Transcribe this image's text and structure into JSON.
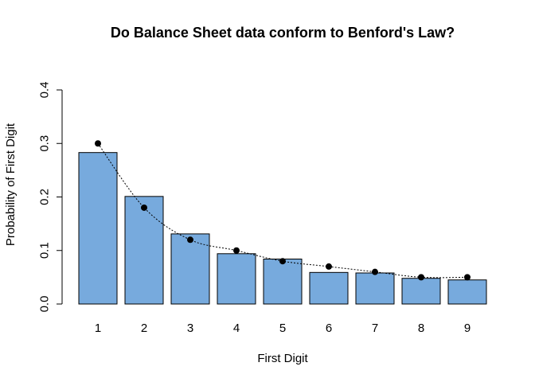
{
  "chart_data": {
    "type": "bar",
    "title": "Do Balance Sheet data conform to Benford's Law?",
    "xlabel": "First Digit",
    "ylabel": "Probability of First Digit",
    "categories": [
      "1",
      "2",
      "3",
      "4",
      "5",
      "6",
      "7",
      "8",
      "9"
    ],
    "values": [
      0.283,
      0.201,
      0.131,
      0.094,
      0.084,
      0.059,
      0.058,
      0.048,
      0.045
    ],
    "overlay_points": [
      0.3,
      0.18,
      0.12,
      0.1,
      0.08,
      0.07,
      0.06,
      0.05,
      0.05
    ],
    "ylim": [
      0,
      0.4
    ],
    "yticks": [
      "0.0",
      "0.1",
      "0.2",
      "0.3",
      "0.4"
    ],
    "grid": false,
    "bar_color": "#77aadd",
    "overlay_color": "#000000"
  }
}
